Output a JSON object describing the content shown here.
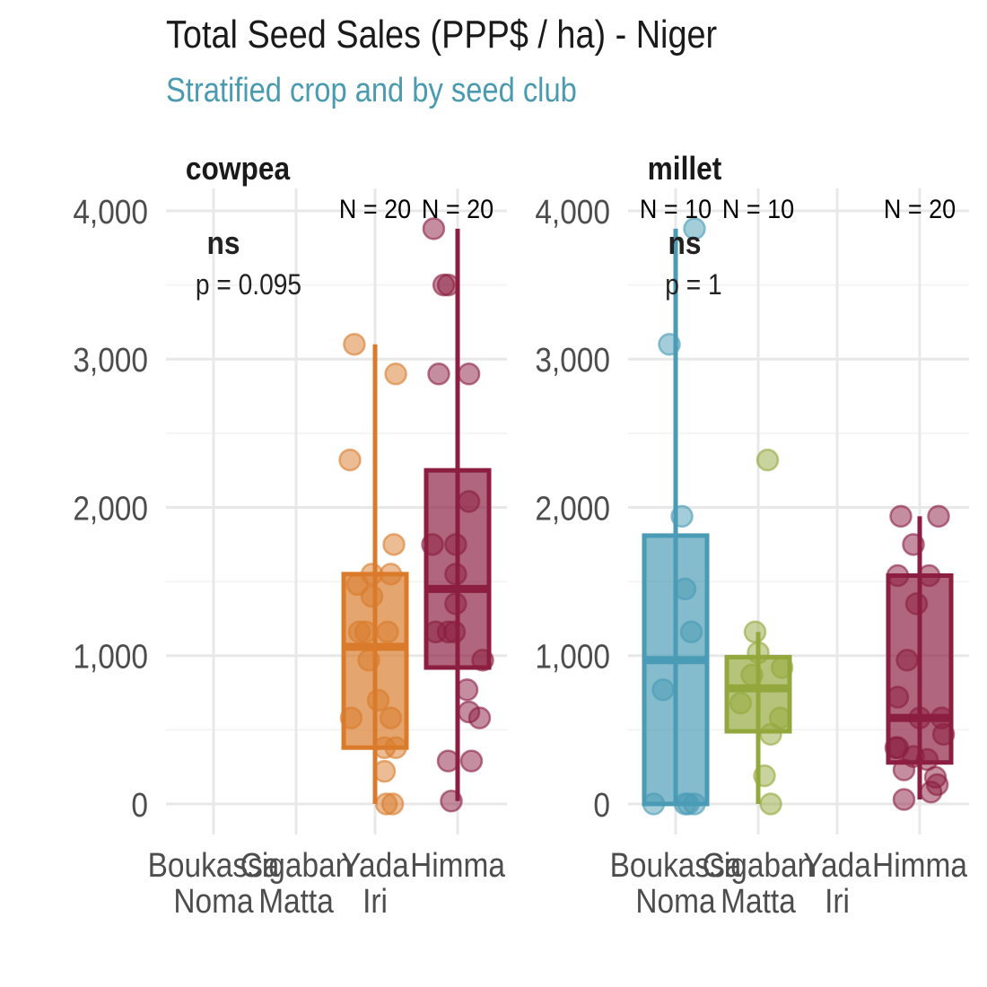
{
  "title": "Total Seed Sales (PPP$ / ha) - Niger",
  "subtitle": "Stratified crop and by seed club",
  "colors": {
    "Boukassa Noma": "#4a9bb6",
    "Cigaban Matta": "#93a83c",
    "Yada Iri": "#d97b2b",
    "Himma": "#8b1e41"
  },
  "chart_data": [
    {
      "type": "box",
      "panel": "cowpea",
      "categories": [
        "Boukassa Noma",
        "Cigaban Matta",
        "Yada Iri",
        "Himma"
      ],
      "category_labels": [
        [
          "Boukassa",
          "Noma"
        ],
        [
          "Cigaban",
          "Matta"
        ],
        [
          "Yada",
          "Iri"
        ],
        [
          "Himma"
        ]
      ],
      "ylim": [
        -180,
        4050
      ],
      "yticks": [
        0,
        1000,
        2000,
        3000,
        4000
      ],
      "ytick_labels": [
        "0",
        "1,000",
        "2,000",
        "3,000",
        "4,000"
      ],
      "grid": true,
      "significance": "ns",
      "p_label": "p = 0.095",
      "series": [
        {
          "name": "Yada Iri",
          "n_label": "N = 20",
          "box": {
            "q1": 380,
            "median": 1060,
            "q3": 1550,
            "whisker_low": 0,
            "whisker_high": 3100
          },
          "points": [
            [
              -0.33,
              3100
            ],
            [
              0.33,
              2900
            ],
            [
              -0.4,
              2320
            ],
            [
              0.3,
              1750
            ],
            [
              -0.05,
              1550
            ],
            [
              0.25,
              1550
            ],
            [
              -0.28,
              1480
            ],
            [
              -0.25,
              1160
            ],
            [
              -0.15,
              1160
            ],
            [
              0.2,
              1160
            ],
            [
              -0.1,
              970
            ],
            [
              -0.38,
              580
            ],
            [
              0.25,
              580
            ],
            [
              0.15,
              380
            ],
            [
              0.33,
              380
            ],
            [
              0.15,
              220
            ],
            [
              0.18,
              0
            ],
            [
              0.28,
              0
            ],
            [
              -0.05,
              1400
            ],
            [
              0.05,
              700
            ]
          ]
        },
        {
          "name": "Himma",
          "n_label": "N = 20",
          "box": {
            "q1": 920,
            "median": 1450,
            "q3": 2250,
            "whisker_low": 20,
            "whisker_high": 3880
          },
          "points": [
            [
              -0.38,
              3880
            ],
            [
              -0.22,
              3500
            ],
            [
              -0.15,
              3500
            ],
            [
              -0.3,
              2900
            ],
            [
              0.18,
              2900
            ],
            [
              0.18,
              2040
            ],
            [
              -0.4,
              1750
            ],
            [
              -0.03,
              1750
            ],
            [
              -0.03,
              1550
            ],
            [
              -0.03,
              1350
            ],
            [
              -0.35,
              1160
            ],
            [
              -0.15,
              1160
            ],
            [
              -0.05,
              1160
            ],
            [
              0.4,
              970
            ],
            [
              0.15,
              770
            ],
            [
              0.18,
              620
            ],
            [
              0.35,
              580
            ],
            [
              -0.15,
              290
            ],
            [
              0.22,
              290
            ],
            [
              -0.1,
              20
            ]
          ]
        }
      ]
    },
    {
      "type": "box",
      "panel": "millet",
      "categories": [
        "Boukassa Noma",
        "Cigaban Matta",
        "Yada Iri",
        "Himma"
      ],
      "category_labels": [
        [
          "Boukassa",
          "Noma"
        ],
        [
          "Cigaban",
          "Matta"
        ],
        [
          "Yada",
          "Iri"
        ],
        [
          "Himma"
        ]
      ],
      "ylim": [
        -180,
        4050
      ],
      "yticks": [
        0,
        1000,
        2000,
        3000,
        4000
      ],
      "ytick_labels": [
        "0",
        "1,000",
        "2,000",
        "3,000",
        "4,000"
      ],
      "grid": true,
      "significance": "ns",
      "p_label": "p = 1",
      "series": [
        {
          "name": "Boukassa Noma",
          "n_label": "N = 10",
          "box": {
            "q1": 0,
            "median": 970,
            "q3": 1810,
            "whisker_low": 0,
            "whisker_high": 3880
          },
          "points": [
            [
              0.3,
              3880
            ],
            [
              -0.1,
              3100
            ],
            [
              0.1,
              1940
            ],
            [
              0.15,
              1450
            ],
            [
              0.25,
              1160
            ],
            [
              -0.2,
              770
            ],
            [
              -0.35,
              0
            ],
            [
              0.15,
              0
            ],
            [
              0.3,
              0
            ],
            [
              0.2,
              0
            ]
          ]
        },
        {
          "name": "Cigaban Matta",
          "n_label": "N = 10",
          "box": {
            "q1": 490,
            "median": 780,
            "q3": 990,
            "whisker_low": 0,
            "whisker_high": 1160
          },
          "points": [
            [
              0.15,
              2320
            ],
            [
              -0.05,
              1160
            ],
            [
              0.0,
              1020
            ],
            [
              -0.1,
              870
            ],
            [
              0.38,
              920
            ],
            [
              -0.28,
              680
            ],
            [
              0.35,
              580
            ],
            [
              0.2,
              470
            ],
            [
              0.1,
              190
            ],
            [
              0.2,
              0
            ]
          ]
        },
        {
          "name": "Himma",
          "n_label": "N = 20",
          "box": {
            "q1": 280,
            "median": 580,
            "q3": 1540,
            "whisker_low": 30,
            "whisker_high": 1940
          },
          "points": [
            [
              -0.3,
              1940
            ],
            [
              0.3,
              1940
            ],
            [
              -0.1,
              1750
            ],
            [
              -0.35,
              1540
            ],
            [
              0.15,
              1540
            ],
            [
              -0.05,
              1350
            ],
            [
              -0.2,
              970
            ],
            [
              -0.35,
              720
            ],
            [
              0.0,
              580
            ],
            [
              0.35,
              580
            ],
            [
              0.38,
              470
            ],
            [
              -0.38,
              380
            ],
            [
              -0.35,
              380
            ],
            [
              -0.1,
              320
            ],
            [
              0.12,
              300
            ],
            [
              -0.25,
              230
            ],
            [
              0.25,
              180
            ],
            [
              0.28,
              130
            ],
            [
              0.18,
              80
            ],
            [
              -0.25,
              30
            ]
          ]
        }
      ]
    }
  ]
}
